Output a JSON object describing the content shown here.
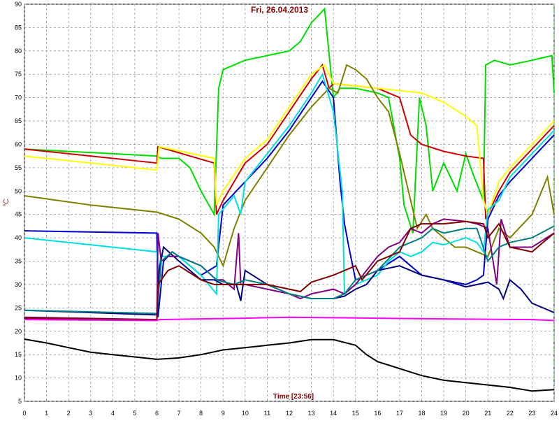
{
  "chart_data": {
    "type": "line",
    "title": "Fri, 26.04.2013",
    "x_label": "Time [23:56]",
    "y_label": "°C",
    "xlim": [
      0,
      24
    ],
    "xticks": [
      0,
      1,
      2,
      3,
      4,
      5,
      6,
      7,
      8,
      9,
      10,
      11,
      12,
      13,
      14,
      15,
      16,
      17,
      18,
      19,
      20,
      21,
      22,
      23,
      24
    ],
    "ylim": [
      5,
      90
    ],
    "yticks": [
      5,
      10,
      15,
      20,
      25,
      30,
      35,
      40,
      45,
      50,
      55,
      60,
      65,
      70,
      75,
      80,
      85,
      90
    ],
    "grid": true,
    "series": [
      {
        "color": "#00dd00",
        "x": [
          0,
          6,
          6.2,
          7,
          7.5,
          8,
          8.6,
          8.8,
          9,
          10,
          11,
          12,
          12.5,
          13,
          13.6,
          14,
          14.3,
          15,
          16,
          16.5,
          17,
          17.2,
          17.6,
          17.9,
          18.2,
          18.5,
          19,
          19.6,
          20,
          20.3,
          20.8,
          20.9,
          21.3,
          22,
          23,
          23.9,
          24
        ],
        "values": [
          59,
          57.5,
          57,
          57,
          55,
          50,
          45,
          72,
          76,
          78,
          79,
          80,
          82,
          86,
          89,
          70,
          72,
          72,
          71,
          70,
          57,
          47,
          41,
          70,
          64,
          50,
          56,
          50,
          58,
          54,
          48,
          77,
          78,
          77,
          78,
          79,
          71
        ]
      },
      {
        "color": "#cc0000",
        "x": [
          0,
          6,
          6.05,
          8.6,
          8.7,
          9,
          10,
          11,
          12,
          13,
          13.5,
          13.8,
          14,
          15,
          16,
          17,
          17.5,
          18,
          19,
          20,
          20.8,
          20.9,
          21.5,
          22,
          23,
          24
        ],
        "values": [
          59,
          56,
          59.5,
          56,
          45,
          48,
          56,
          60,
          67,
          74,
          77,
          72,
          73,
          72.5,
          72,
          70,
          62,
          60,
          58.5,
          57.5,
          57,
          44,
          50,
          54,
          59,
          64
        ]
      },
      {
        "color": "#ffff00",
        "x": [
          0,
          6,
          6.1,
          8.6,
          8.7,
          9,
          10,
          11,
          12,
          13,
          13.6,
          14,
          15,
          16,
          17,
          18,
          19,
          20,
          20.5,
          20.8,
          21,
          21.5,
          22,
          23,
          24
        ],
        "values": [
          57.5,
          54.5,
          59.5,
          57,
          47,
          50,
          57,
          61,
          68,
          75,
          77,
          73,
          72.5,
          72,
          71.5,
          71,
          69,
          66,
          64,
          48,
          45,
          52,
          55,
          60,
          65
        ]
      },
      {
        "color": "#808000",
        "x": [
          0,
          3,
          6,
          7,
          8,
          8.6,
          9,
          9.5,
          10,
          11,
          12,
          13,
          13.8,
          14.2,
          14.6,
          15,
          15.5,
          16,
          16.5,
          17,
          17.5,
          17.8,
          18.2,
          18.5,
          19,
          19.5,
          20,
          20.5,
          21,
          21.5,
          22,
          23,
          23.7,
          24
        ],
        "values": [
          49,
          47,
          45.5,
          44,
          41,
          38,
          34,
          42,
          48,
          55,
          62,
          68,
          72,
          71,
          77,
          76,
          74,
          70,
          67,
          58,
          48,
          42,
          45,
          42,
          40,
          38,
          38,
          37,
          36,
          42,
          40,
          45,
          53,
          45
        ]
      },
      {
        "color": "#0000cc",
        "x": [
          0,
          6,
          6.05,
          6.3,
          6.7,
          7,
          8,
          8.7,
          9,
          10,
          11,
          12,
          13,
          13.5,
          14,
          14.3,
          14.5,
          14.7,
          15,
          16,
          17,
          17.5,
          18,
          19,
          20,
          20.5,
          20.8,
          21,
          21.5,
          22,
          23,
          24
        ],
        "values": [
          41.5,
          41,
          23,
          35,
          37,
          36,
          32,
          34,
          47,
          52,
          57,
          63,
          70,
          73.5,
          70,
          52,
          43,
          38,
          31,
          33,
          36,
          34,
          32,
          31,
          30,
          31,
          32,
          44,
          49,
          52,
          57,
          62
        ]
      },
      {
        "color": "#00e0e0",
        "x": [
          0,
          6,
          6.05,
          6.2,
          7,
          8,
          8.7,
          8.8,
          9.5,
          9.8,
          10,
          11,
          12,
          13,
          13.5,
          14,
          14.4,
          14.5,
          15,
          16,
          16.5,
          17,
          17.5,
          18,
          18.5,
          19,
          20,
          20.5,
          20.8,
          21,
          21.5,
          22,
          23,
          24
        ],
        "values": [
          40,
          37,
          33,
          36,
          36,
          32,
          28,
          45,
          49,
          45,
          52,
          58,
          64,
          71,
          75,
          67,
          50,
          28,
          30,
          32,
          35,
          37,
          36,
          37,
          39,
          38.5,
          40,
          39,
          37,
          46,
          48,
          53,
          58,
          63
        ]
      },
      {
        "color": "#000080",
        "x": [
          0,
          6,
          6.1,
          6.3,
          7,
          8,
          8.6,
          9,
          9.6,
          9.8,
          10,
          11,
          12,
          13,
          14,
          14.5,
          15,
          15.5,
          16,
          17,
          18,
          19,
          20,
          21,
          21.5,
          21.7,
          22,
          22.5,
          23,
          24
        ],
        "values": [
          24.5,
          23.5,
          33,
          38,
          35,
          31,
          31,
          30,
          30,
          26.5,
          33,
          30,
          28,
          27,
          27,
          27.5,
          29,
          30,
          33,
          34,
          32,
          31,
          29.5,
          30.5,
          29,
          27,
          31,
          29,
          26,
          24
        ]
      },
      {
        "color": "#800080",
        "x": [
          0,
          6,
          6.05,
          6.2,
          6.5,
          7,
          8,
          8.7,
          9,
          9.5,
          9.7,
          9.8,
          10,
          11,
          12,
          12.5,
          13,
          14,
          14.5,
          15,
          16,
          16.5,
          17,
          17.5,
          18,
          18.5,
          19,
          20,
          20.5,
          21,
          21.4,
          21.6,
          22,
          23,
          24
        ],
        "values": [
          23,
          22.5,
          41,
          35,
          36,
          36,
          34,
          31,
          31,
          29,
          41,
          30,
          30,
          29,
          28,
          27,
          28,
          29,
          28,
          30,
          36,
          38,
          39,
          42,
          41,
          43,
          44,
          43.5,
          43,
          42,
          30,
          44,
          38,
          38,
          41
        ]
      },
      {
        "color": "#008080",
        "x": [
          0,
          6,
          6.2,
          6.7,
          7,
          8,
          8.7,
          9.5,
          10,
          11,
          12,
          13,
          14,
          14.5,
          15,
          16,
          17,
          18,
          18.5,
          19,
          20,
          20.5,
          21,
          21.5,
          22,
          23,
          24
        ],
        "values": [
          24.5,
          23.8,
          35,
          37,
          36,
          34,
          31,
          30,
          31,
          30,
          28,
          27,
          27,
          28,
          31,
          33,
          38,
          40,
          42,
          41,
          42,
          42,
          35,
          38,
          39,
          40,
          42.5
        ]
      },
      {
        "color": "#800000",
        "x": [
          0,
          6,
          6.05,
          6.5,
          7,
          8,
          8.6,
          9,
          10,
          11,
          12,
          12.5,
          13,
          14,
          15,
          15.3,
          16,
          17,
          17.5,
          18,
          18.5,
          19,
          20,
          20.8,
          21,
          21.5,
          22,
          23,
          24
        ],
        "values": [
          22.8,
          22.5,
          30,
          33,
          34,
          31,
          30,
          30,
          30,
          30,
          29,
          28.5,
          30.5,
          32,
          34,
          31,
          35,
          37,
          42,
          43,
          43,
          43,
          43.5,
          43,
          40,
          43,
          38,
          37,
          41
        ]
      },
      {
        "color": "#ff00ff",
        "x": [
          0,
          6,
          6.1,
          10,
          12,
          16,
          20,
          23,
          24
        ],
        "values": [
          22.5,
          22.3,
          22.5,
          22.8,
          23,
          22.8,
          22.6,
          22.5,
          22.3
        ]
      },
      {
        "color": "#000000",
        "x": [
          0,
          1,
          2,
          3,
          4,
          5,
          6,
          7,
          8,
          9,
          10,
          11,
          12,
          13,
          14,
          15,
          15.5,
          16,
          17,
          18,
          19,
          20,
          21,
          22,
          23,
          24
        ],
        "values": [
          18.3,
          17.5,
          16.5,
          15.5,
          15,
          14.5,
          14,
          14.3,
          15,
          16,
          16.5,
          17,
          17.5,
          18.2,
          18.2,
          17,
          15,
          13.5,
          12,
          10.5,
          9.5,
          9,
          8.5,
          8,
          7.2,
          7.5
        ]
      }
    ]
  }
}
